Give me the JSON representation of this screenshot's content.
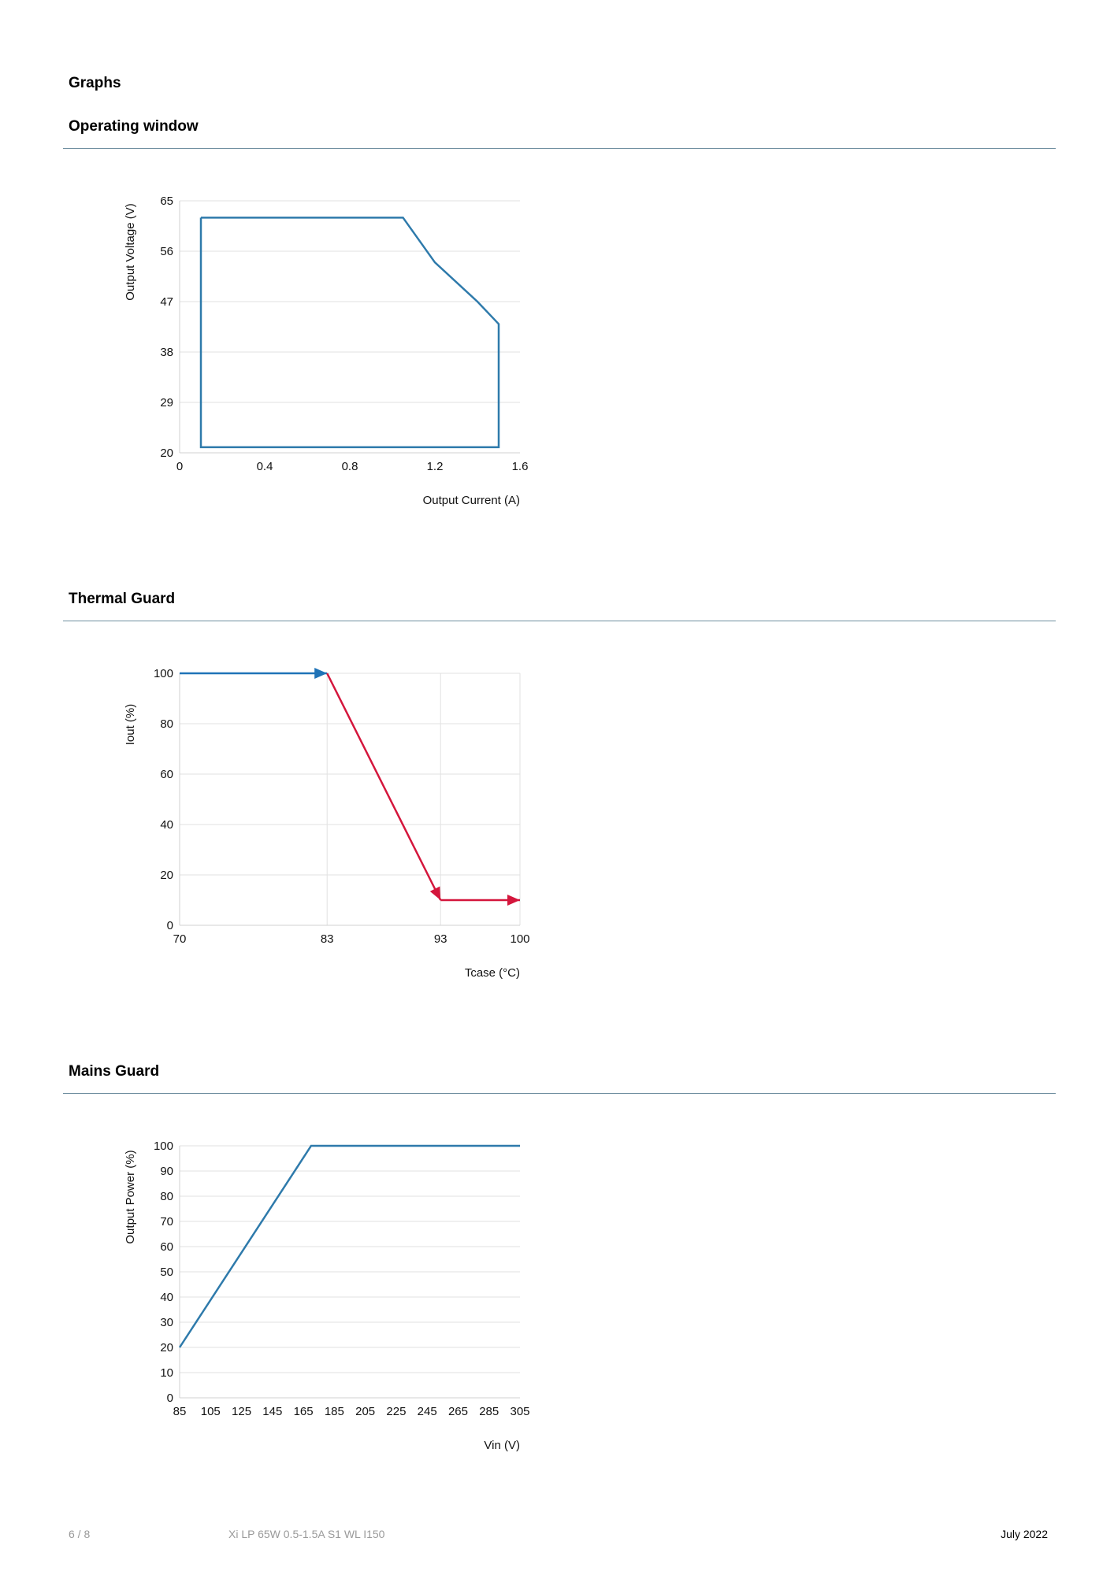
{
  "page": {
    "section_title": "Graphs",
    "headings": [
      "Operating window",
      "Thermal Guard",
      "Mains Guard"
    ]
  },
  "chart_data": [
    {
      "type": "line",
      "title": "Operating window",
      "xlabel": "Output Current (A)",
      "ylabel": "Output Voltage (V)",
      "xlim": [
        0,
        1.6
      ],
      "ylim": [
        20,
        65
      ],
      "x_ticks": [
        "0",
        "0.4",
        "0.8",
        "1.2",
        "1.6"
      ],
      "y_ticks": [
        "20",
        "29",
        "38",
        "47",
        "56",
        "65"
      ],
      "grid": "horizontal",
      "series": [
        {
          "color": "#2e7aab",
          "x": [
            0.1,
            1.05,
            1.2,
            1.4,
            1.5,
            1.5,
            0.1,
            0.1
          ],
          "y": [
            62,
            62,
            54,
            47,
            43,
            21,
            21,
            62
          ]
        }
      ]
    },
    {
      "type": "line",
      "title": "Thermal Guard",
      "xlabel": "Tcase (°C)",
      "ylabel": "Iout (%)",
      "xlim": [
        70,
        100
      ],
      "ylim": [
        0,
        100
      ],
      "x_ticks": [
        "70",
        "83",
        "93",
        "100"
      ],
      "y_ticks": [
        "0",
        "20",
        "40",
        "60",
        "80",
        "100"
      ],
      "grid": "both",
      "series": [
        {
          "color": "#1f73b7",
          "x": [
            70,
            83
          ],
          "y": [
            100,
            100
          ]
        },
        {
          "color": "#d4163c",
          "x": [
            83,
            93
          ],
          "y": [
            100,
            10
          ]
        },
        {
          "color": "#d4163c",
          "x": [
            93,
            100
          ],
          "y": [
            10,
            10
          ]
        }
      ]
    },
    {
      "type": "line",
      "title": "Mains Guard",
      "xlabel": "Vin (V)",
      "ylabel": "Output Power (%)",
      "xlim": [
        85,
        305
      ],
      "ylim": [
        0,
        100
      ],
      "x_ticks": [
        "85",
        "105",
        "125",
        "145",
        "165",
        "185",
        "205",
        "225",
        "245",
        "265",
        "285",
        "305"
      ],
      "y_ticks": [
        "0",
        "10",
        "20",
        "30",
        "40",
        "50",
        "60",
        "70",
        "80",
        "90",
        "100"
      ],
      "grid": "horizontal",
      "series": [
        {
          "color": "#2e7aab",
          "x": [
            85,
            170,
            305
          ],
          "y": [
            20,
            100,
            100
          ]
        }
      ]
    }
  ],
  "footer": {
    "page_number": "6 / 8",
    "product": "Xi LP 65W 0.5-1.5A S1 WL I150",
    "date": "July 2022"
  }
}
